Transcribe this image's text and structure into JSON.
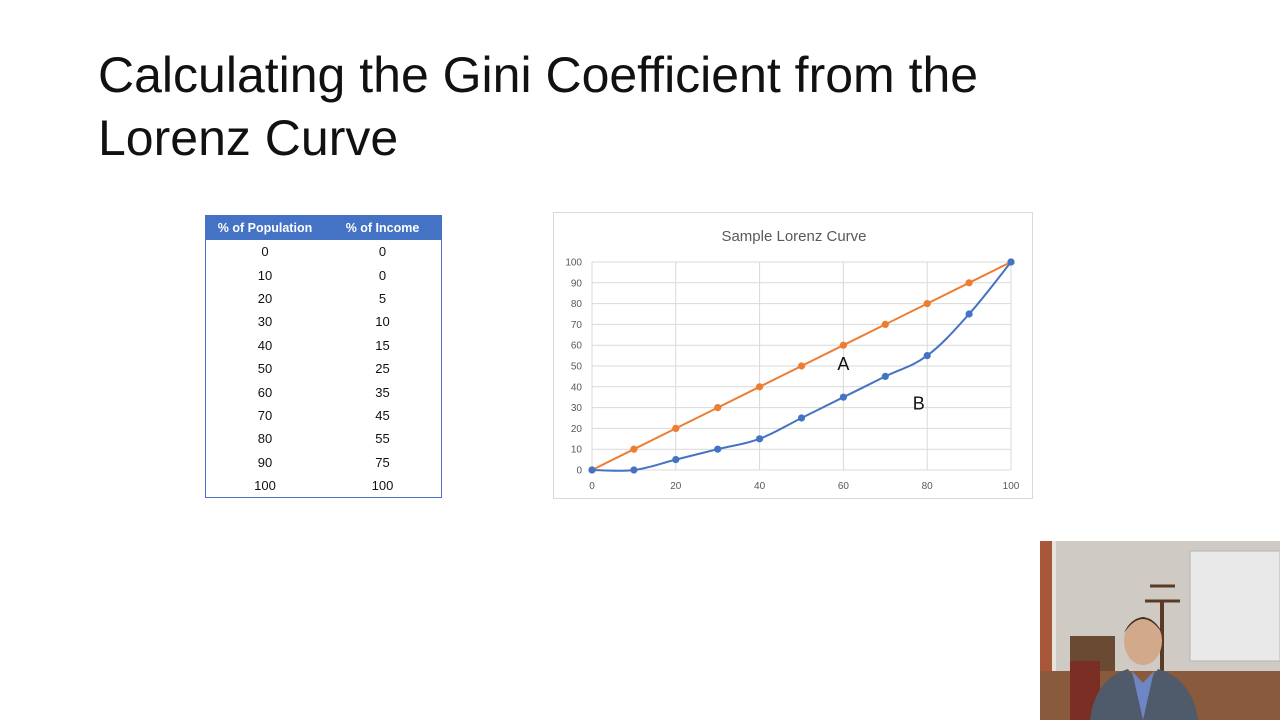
{
  "slide": {
    "title": "Calculating the Gini Coefficient from the Lorenz Curve"
  },
  "table": {
    "headers": [
      "% of Population",
      "% of Income"
    ],
    "rows": [
      [
        "0",
        "0"
      ],
      [
        "10",
        "0"
      ],
      [
        "20",
        "5"
      ],
      [
        "30",
        "10"
      ],
      [
        "40",
        "15"
      ],
      [
        "50",
        "25"
      ],
      [
        "60",
        "35"
      ],
      [
        "70",
        "45"
      ],
      [
        "80",
        "55"
      ],
      [
        "90",
        "75"
      ],
      [
        "100",
        "100"
      ]
    ]
  },
  "chart_data": {
    "type": "line",
    "title": "Sample Lorenz Curve",
    "x": [
      0,
      10,
      20,
      30,
      40,
      50,
      60,
      70,
      80,
      90,
      100
    ],
    "series": [
      {
        "values": [
          0,
          10,
          20,
          30,
          40,
          50,
          60,
          70,
          80,
          90,
          100
        ],
        "color": "#ed7d31"
      },
      {
        "values": [
          0,
          0,
          5,
          10,
          15,
          25,
          35,
          45,
          55,
          75,
          100
        ],
        "color": "#4472c4",
        "smooth": true
      }
    ],
    "xticks": [
      0,
      20,
      40,
      60,
      80,
      100
    ],
    "yticks": [
      0,
      10,
      20,
      30,
      40,
      50,
      60,
      70,
      80,
      90,
      100
    ],
    "xlim": [
      0,
      100
    ],
    "ylim": [
      0,
      100
    ],
    "grid": true,
    "xlabel": "",
    "ylabel": "",
    "annotations": [
      {
        "text": "A",
        "x": 60,
        "y": 48
      },
      {
        "text": "B",
        "x": 78,
        "y": 29
      }
    ]
  },
  "webcam": {
    "description_icon": "presenter-video-icon"
  }
}
